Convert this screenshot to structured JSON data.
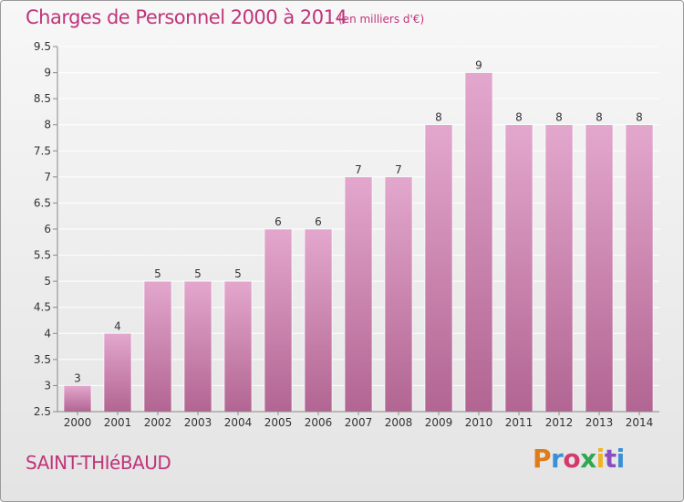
{
  "header": {
    "title": "Charges de Personnel 2000 à 2014",
    "subtitle": "(en milliers d'€)"
  },
  "footer": {
    "commune": "SAINT-THIéBAUD",
    "logo_text": "Proxiti",
    "logo_colors": [
      "#e07b1a",
      "#3a8fd6",
      "#d33a6b",
      "#2fa84f",
      "#f0b323",
      "#8a4fbf",
      "#3a8fd6"
    ]
  },
  "chart_data": {
    "type": "bar",
    "categories": [
      "2000",
      "2001",
      "2002",
      "2003",
      "2004",
      "2005",
      "2006",
      "2007",
      "2008",
      "2009",
      "2010",
      "2011",
      "2012",
      "2013",
      "2014"
    ],
    "values": [
      3,
      4,
      5,
      5,
      5,
      6,
      6,
      7,
      7,
      8,
      9,
      8,
      8,
      8,
      8
    ],
    "data_labels": [
      "3",
      "4",
      "5",
      "5",
      "5",
      "6",
      "6",
      "7",
      "7",
      "8",
      "9",
      "8",
      "8",
      "8",
      "8"
    ],
    "y_ticks": [
      "2.5",
      "3",
      "3.5",
      "4",
      "4.5",
      "5",
      "5.5",
      "6",
      "6.5",
      "7",
      "7.5",
      "8",
      "8.5",
      "9",
      "9.5"
    ],
    "ylim": [
      2.5,
      9.5
    ],
    "grid": true,
    "colors": {
      "bar_top": "#e3a7cd",
      "bar_bottom": "#b26592",
      "grid": "#ffffff",
      "text": "#333333",
      "accent": "#c0347a"
    }
  }
}
